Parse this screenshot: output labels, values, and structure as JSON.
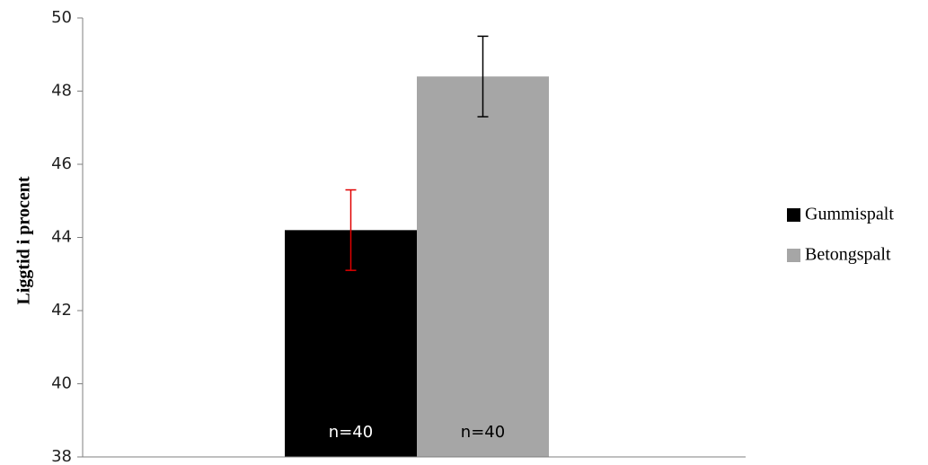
{
  "chart_data": {
    "type": "bar",
    "title": "",
    "xlabel": "",
    "ylabel": "Liggtid i procent",
    "ylim": [
      38,
      50
    ],
    "yticks": [
      38,
      40,
      42,
      44,
      46,
      48,
      50
    ],
    "grid": false,
    "legend_position": "right",
    "series": [
      {
        "name": "Gummispalt",
        "value": 44.2,
        "error": 1.1,
        "label": "n=40",
        "color": "#000000",
        "error_color": "#e00000",
        "label_color": "#ffffff"
      },
      {
        "name": "Betongspalt",
        "value": 48.4,
        "error": 1.1,
        "label": "n=40",
        "color": "#a6a6a6",
        "error_color": "#000000",
        "label_color": "#000000"
      }
    ]
  }
}
